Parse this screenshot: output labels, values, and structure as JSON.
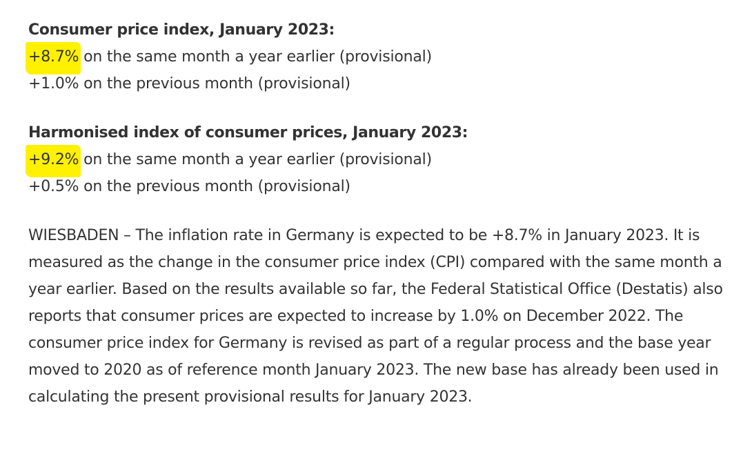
{
  "cpi": {
    "heading": "Consumer price index, January 2023:",
    "annual_value": "+8.7%",
    "annual_text": " on the same month a year earlier (provisional)",
    "monthly_value": "+1.0%",
    "monthly_text": " on the previous month (provisional)"
  },
  "hicp": {
    "heading": "Harmonised index of consumer prices, January 2023:",
    "annual_value": "+9.2%",
    "annual_text": " on the same month a year earlier (provisional)",
    "monthly_value": "+0.5%",
    "monthly_text": " on the previous month (provisional)"
  },
  "body": {
    "paragraph": "WIESBADEN – The inflation rate in Germany is expected to be +8.7% in January 2023. It is measured as the change in the consumer price index (CPI) compared with the same month a year earlier. Based on the results available so far, the Federal Statistical Office (Destatis) also reports that consumer prices are expected to increase by 1.0% on December 2022. The consumer price index for Germany is revised as part of a regular process and the base year moved to 2020 as of reference month January 2023. The new base has already been used in calculating the present provisional results for January 2023."
  },
  "highlight_color": "#fff100",
  "text_color": "#333333"
}
